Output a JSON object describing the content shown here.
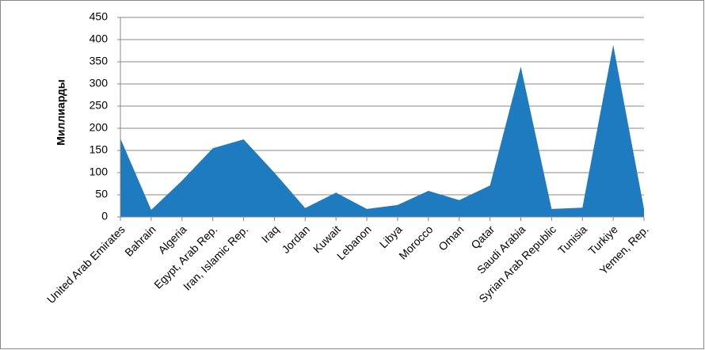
{
  "chart_data": {
    "type": "area",
    "y_label": "Миллиарды",
    "categories": [
      "United Arab Emirates",
      "Bahrain",
      "Algeria",
      "Egypt, Arab Rep.",
      "Iran, Islamic Rep.",
      "Iraq",
      "Jordan",
      "Kuwait",
      "Lebanon",
      "Libya",
      "Morocco",
      "Oman",
      "Qatar",
      "Saudi Arabia",
      "Syrian Arab Republic",
      "Tunisia",
      "Turkiye",
      "Yemen, Rep."
    ],
    "values": [
      177,
      16,
      82,
      155,
      175,
      100,
      20,
      55,
      18,
      27,
      59,
      38,
      71,
      339,
      18,
      21,
      388,
      18
    ],
    "color": "#1f7bbf",
    "ylim": [
      0,
      450
    ],
    "yticks": [
      0,
      50,
      100,
      150,
      200,
      250,
      300,
      350,
      400,
      450
    ],
    "grid": true
  }
}
